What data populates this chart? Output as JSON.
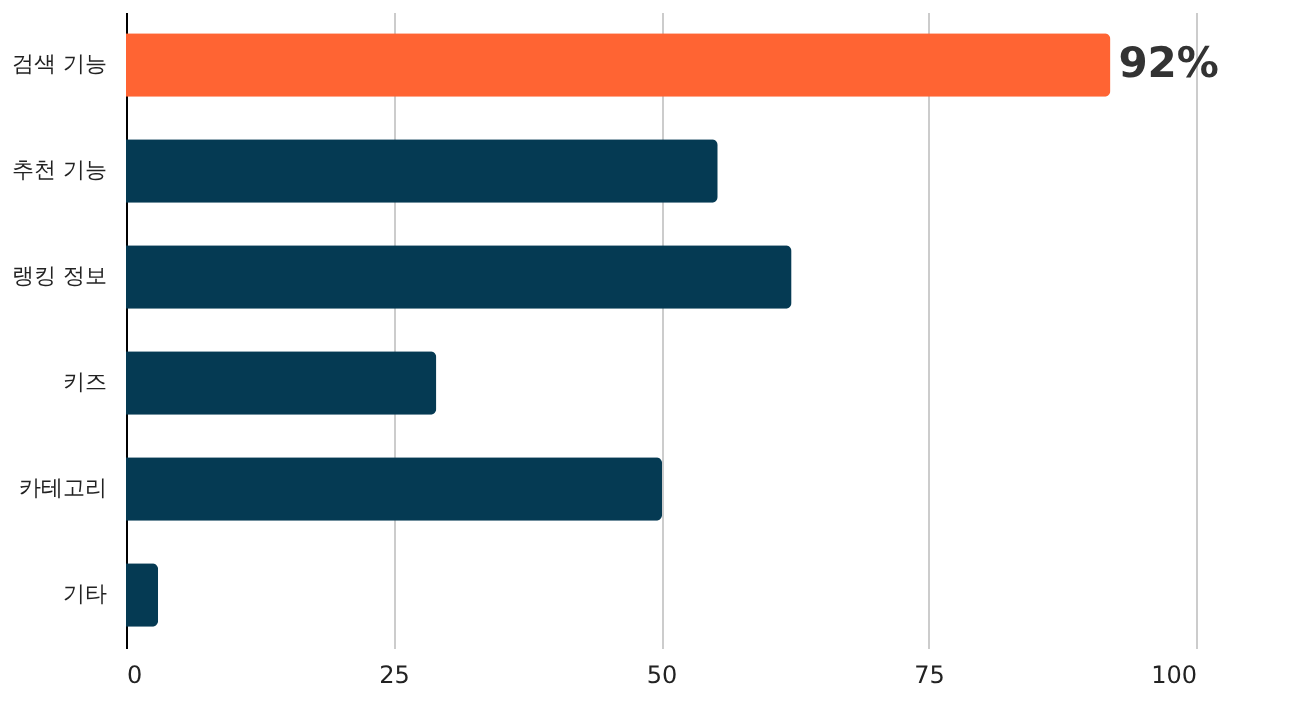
{
  "chart_data": {
    "type": "bar",
    "orientation": "horizontal",
    "categories": [
      "검색 기능",
      "추천 기능",
      "랭킹 정보",
      "키즈",
      "카테고리",
      "기타"
    ],
    "values": [
      92,
      55.3,
      62.2,
      29,
      50.1,
      3
    ],
    "colors": [
      "#ff6433",
      "#053a53",
      "#053a53",
      "#053a53",
      "#053a53",
      "#053a53"
    ],
    "value_labels": [
      "92%",
      null,
      null,
      null,
      null,
      null
    ],
    "xlim": [
      0,
      100
    ],
    "xticks": [
      0,
      25,
      50,
      75,
      100
    ],
    "grid": "x",
    "legend": false
  }
}
